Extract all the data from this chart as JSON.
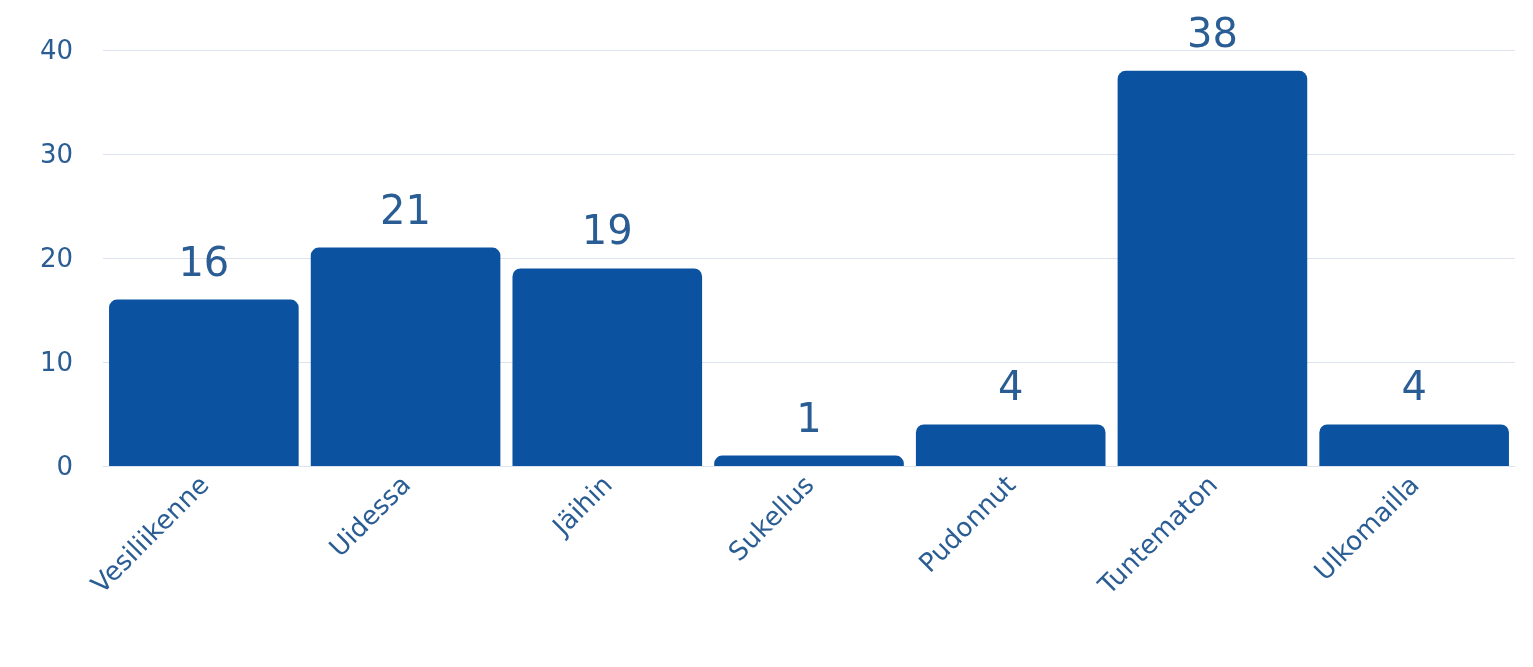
{
  "chart_data": {
    "type": "bar",
    "categories": [
      "Vesiliikenne",
      "Uidessa",
      "Jäihin",
      "Sukellus",
      "Pudonnut",
      "Tuntematon",
      "Ulkomailla"
    ],
    "values": [
      16,
      21,
      19,
      1,
      4,
      38,
      4
    ],
    "color": "#0b52a0",
    "ylim": [
      0,
      40
    ],
    "yticks": [
      0,
      10,
      20,
      30,
      40
    ],
    "grid": "y",
    "data_labels": true
  }
}
